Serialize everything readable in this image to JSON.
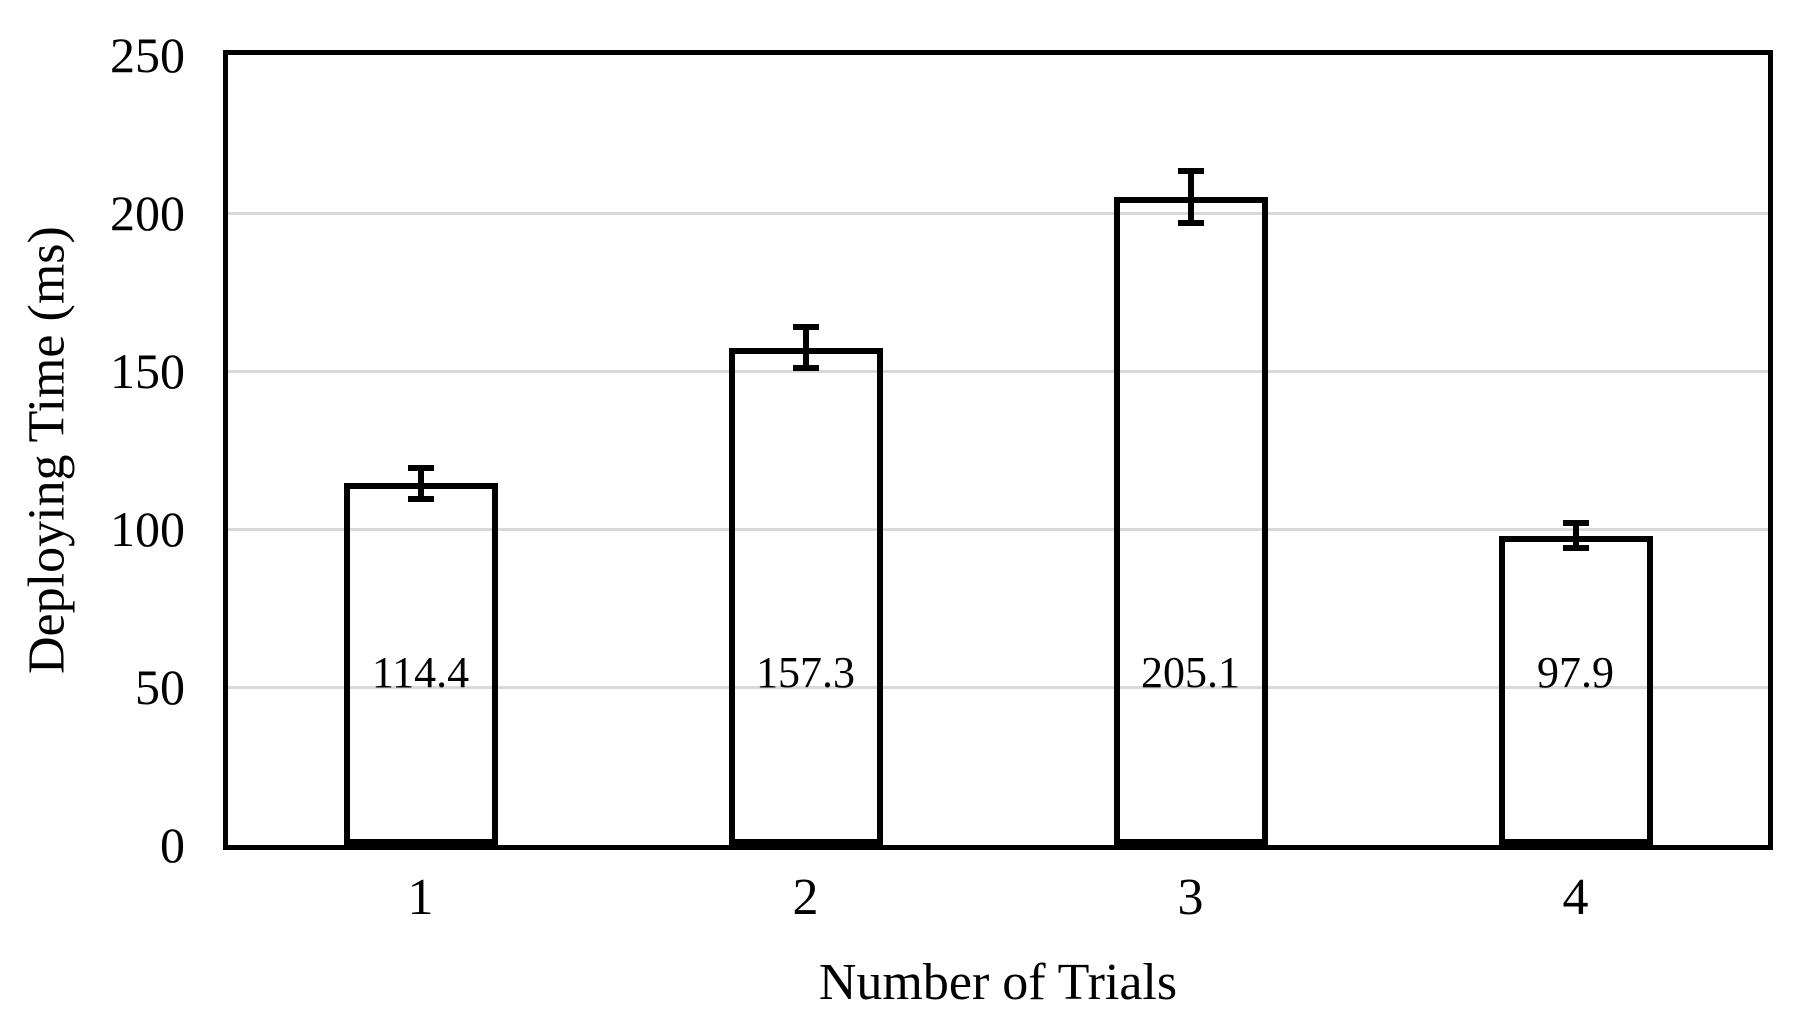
{
  "chart_data": {
    "type": "bar",
    "title": "",
    "categories": [
      "1",
      "2",
      "3",
      "4"
    ],
    "values": [
      114.4,
      157.3,
      205.1,
      97.9
    ],
    "errors": [
      4.8,
      6.5,
      8.3,
      4.0
    ],
    "data_labels": [
      "114.4",
      "157.3",
      "205.1",
      "97.9"
    ],
    "xlabel": "Number of Trials",
    "ylabel": "Deploying Time (ms)",
    "ylim": [
      0,
      250
    ],
    "yticks": [
      0,
      50,
      100,
      150,
      200,
      250
    ],
    "ytick_labels": [
      "0",
      "50",
      "100",
      "150",
      "200",
      "250"
    ],
    "grid": "horizontal-only",
    "legend": "none",
    "colors": {
      "bar_fill": "transparent",
      "bar_border": "#000000",
      "gridline": "#d9d9d9",
      "error_bar": "#000000",
      "text": "#000000",
      "frame": "#000000",
      "background": "#ffffff"
    }
  }
}
